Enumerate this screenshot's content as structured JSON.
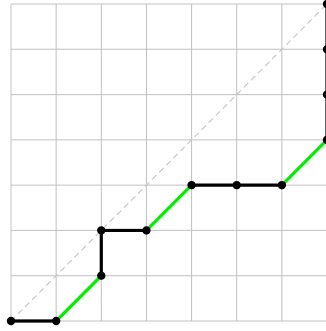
{
  "diagram": {
    "grid": {
      "columns": 7,
      "rows": 7,
      "color": "#c0c0c0"
    },
    "diagonal": {
      "from": [
        0,
        0
      ],
      "to": [
        7,
        7
      ],
      "color": "#c8c8c8",
      "dashed": true
    },
    "path_colors": {
      "horizontal": "#000000",
      "vertical": "#000000",
      "diagonal": "#00ee00",
      "vertex": "#000000"
    },
    "path": [
      [
        0,
        0
      ],
      [
        1,
        0
      ],
      [
        2,
        1
      ],
      [
        2,
        2
      ],
      [
        3,
        2
      ],
      [
        4,
        3
      ],
      [
        5,
        3
      ],
      [
        6,
        3
      ],
      [
        7,
        4
      ],
      [
        7,
        5
      ],
      [
        7,
        6
      ],
      [
        7,
        7
      ]
    ]
  }
}
